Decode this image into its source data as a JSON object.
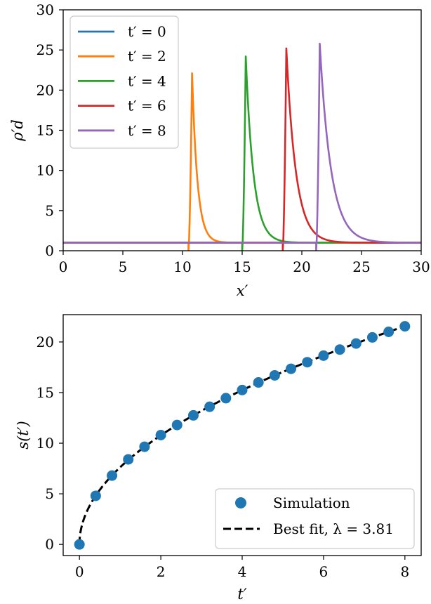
{
  "chart_data": [
    {
      "type": "line",
      "title": "",
      "xlabel": "x′",
      "ylabel": "ρ′d",
      "xlim": [
        0,
        30
      ],
      "ylim": [
        0,
        30
      ],
      "xticks": [
        "0",
        "5",
        "10",
        "15",
        "20",
        "25",
        "30"
      ],
      "yticks": [
        "0",
        "5",
        "10",
        "15",
        "20",
        "25",
        "30"
      ],
      "grid": false,
      "legend_position": "top-left",
      "series": [
        {
          "name": "t′ = 0",
          "color": "#1f77b4",
          "front": null,
          "peak": 1.0,
          "width": 0
        },
        {
          "name": "t′ = 2",
          "color": "#ff7f0e",
          "front": 10.8,
          "peak": 22.1,
          "width": 0.45
        },
        {
          "name": "t′ = 4",
          "color": "#2ca02c",
          "front": 15.3,
          "peak": 24.2,
          "width": 0.65
        },
        {
          "name": "t′ = 6",
          "color": "#d62728",
          "front": 18.7,
          "peak": 25.2,
          "width": 0.8
        },
        {
          "name": "t′ = 8",
          "color": "#9467bd",
          "front": 21.5,
          "peak": 25.8,
          "width": 0.95
        }
      ]
    },
    {
      "type": "scatter",
      "title": "",
      "xlabel": "t′",
      "ylabel": "s(t′)",
      "xlim": [
        -0.4,
        8.4
      ],
      "ylim": [
        -1.1,
        22.7
      ],
      "xticks": [
        "0",
        "2",
        "4",
        "6",
        "8"
      ],
      "yticks": [
        "0",
        "5",
        "10",
        "15",
        "20"
      ],
      "grid": false,
      "legend_position": "bottom-right",
      "series": [
        {
          "name": "Simulation",
          "color": "#1f77b4",
          "x": [
            0,
            0.4,
            0.8,
            1.2,
            1.6,
            2.0,
            2.4,
            2.8,
            3.2,
            3.6,
            4.0,
            4.4,
            4.8,
            5.2,
            5.6,
            6.0,
            6.4,
            6.8,
            7.2,
            7.6,
            8.0
          ],
          "y": [
            0,
            4.8,
            6.8,
            8.4,
            9.65,
            10.8,
            11.8,
            12.75,
            13.6,
            14.45,
            15.25,
            16.0,
            16.7,
            17.35,
            18.0,
            18.65,
            19.25,
            19.85,
            20.45,
            21.0,
            21.55
          ]
        },
        {
          "name": "Best fit, λ = 3.81",
          "color": "#000000",
          "fit_lambda": 3.81
        }
      ]
    }
  ]
}
